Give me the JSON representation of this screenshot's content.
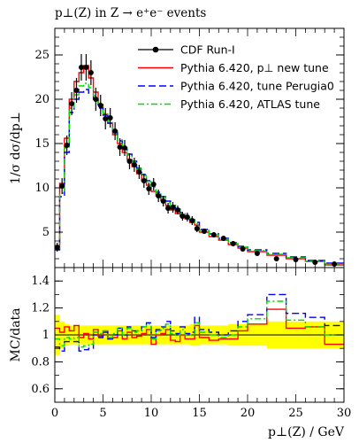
{
  "chart_data": [
    {
      "type": "line",
      "title": "p⊥(Z) in Z → e⁺e⁻ events",
      "ylabel": "1/σ dσ/dp⊥",
      "ylim": [
        1,
        28
      ],
      "yticks": [
        5,
        10,
        15,
        20,
        25
      ],
      "grid": false,
      "legend_position": "top-right",
      "x_bins": [
        0,
        0.5,
        1,
        1.5,
        2,
        2.5,
        3,
        3.5,
        4,
        4.5,
        5,
        5.5,
        6,
        6.5,
        7,
        7.5,
        8,
        8.5,
        9,
        9.5,
        10,
        10.5,
        11,
        11.5,
        12,
        12.5,
        13,
        13.5,
        14,
        14.5,
        15,
        16,
        17,
        18,
        19,
        20,
        22,
        24,
        26,
        28,
        30
      ],
      "data": {
        "name": "CDF Run-I",
        "x": [
          0.25,
          0.75,
          1.25,
          1.75,
          2.25,
          2.75,
          3.25,
          3.75,
          4.25,
          4.75,
          5.25,
          5.75,
          6.25,
          6.75,
          7.25,
          7.75,
          8.25,
          8.75,
          9.25,
          9.75,
          10.25,
          10.75,
          11.25,
          11.75,
          12.25,
          12.75,
          13.25,
          13.75,
          14.25,
          14.75,
          15.5,
          16.5,
          17.5,
          18.5,
          19.5,
          21,
          23,
          25,
          27,
          29
        ],
        "y": [
          3.3,
          10.2,
          14.8,
          19.5,
          21.0,
          23.6,
          23.6,
          23.0,
          20.0,
          19.3,
          17.8,
          17.9,
          16.4,
          14.6,
          14.5,
          13.0,
          12.6,
          11.8,
          10.8,
          9.9,
          10.4,
          9.1,
          8.5,
          7.7,
          7.8,
          7.5,
          6.8,
          6.7,
          6.3,
          5.4,
          5.1,
          4.7,
          4.3,
          3.7,
          3.1,
          2.6,
          2.0,
          1.9,
          1.6,
          1.4
        ],
        "yerr": [
          0.5,
          0.9,
          1.1,
          1.3,
          1.4,
          1.5,
          1.5,
          1.4,
          1.3,
          1.2,
          1.2,
          1.1,
          1.0,
          1.0,
          0.9,
          0.9,
          0.8,
          0.8,
          0.8,
          0.7,
          0.7,
          0.7,
          0.6,
          0.6,
          0.6,
          0.5,
          0.5,
          0.5,
          0.5,
          0.4,
          0.3,
          0.3,
          0.3,
          0.3,
          0.2,
          0.2,
          0.2,
          0.15,
          0.15,
          0.12
        ]
      },
      "series": [
        {
          "name": "Pythia 6.420, p⊥ new tune",
          "color": "#ff0000",
          "style": "solid",
          "values": [
            3.4,
            10.5,
            15.6,
            20.0,
            22.0,
            23.0,
            23.8,
            22.4,
            20.8,
            19.4,
            18.3,
            17.3,
            16.0,
            15.0,
            14.0,
            13.2,
            12.4,
            11.6,
            10.8,
            10.3,
            9.6,
            9.1,
            8.6,
            8.0,
            7.5,
            7.1,
            6.8,
            6.5,
            6.1,
            5.8,
            5.0,
            4.5,
            4.1,
            3.6,
            3.2,
            2.8,
            2.4,
            2.0,
            1.7,
            1.3
          ]
        },
        {
          "name": "Pythia 6.420, tune Perugia0",
          "color": "#0000ff",
          "style": "dashed",
          "values": [
            3.0,
            9.0,
            14.0,
            18.5,
            20.0,
            20.8,
            21.1,
            20.7,
            20.0,
            19.0,
            18.2,
            17.3,
            16.4,
            15.3,
            14.5,
            13.8,
            13.0,
            12.2,
            11.5,
            10.8,
            10.2,
            9.5,
            9.0,
            8.5,
            8.0,
            7.6,
            7.2,
            6.8,
            6.4,
            6.1,
            5.3,
            4.8,
            4.3,
            3.8,
            3.4,
            3.0,
            2.6,
            2.2,
            1.8,
            1.5
          ]
        },
        {
          "name": "Pythia 6.420, ATLAS tune",
          "color": "#00dd00",
          "style": "dashdot",
          "values": [
            3.2,
            9.4,
            14.5,
            19.0,
            20.5,
            21.5,
            21.8,
            21.3,
            20.4,
            19.5,
            18.4,
            17.5,
            16.5,
            15.4,
            14.5,
            13.7,
            12.9,
            12.1,
            11.4,
            10.7,
            10.1,
            9.4,
            8.9,
            8.3,
            7.9,
            7.5,
            7.1,
            6.7,
            6.3,
            5.9,
            5.2,
            4.7,
            4.2,
            3.7,
            3.3,
            2.9,
            2.5,
            2.1,
            1.7,
            1.4
          ]
        }
      ]
    },
    {
      "type": "line",
      "ylabel": "MC/data",
      "xlabel": "p⊥(Z) / GeV",
      "ylim": [
        0.5,
        1.5
      ],
      "yticks": [
        0.6,
        0.8,
        1,
        1.2,
        1.4
      ],
      "xlim": [
        0,
        30
      ],
      "xticks": [
        0,
        5,
        10,
        15,
        20,
        25,
        30
      ],
      "reference_line": 1,
      "band_color": "#ffff00",
      "band_halfwidth": [
        0.15,
        0.1,
        0.08,
        0.07,
        0.07,
        0.07,
        0.07,
        0.07,
        0.07,
        0.07,
        0.07,
        0.07,
        0.07,
        0.07,
        0.07,
        0.07,
        0.07,
        0.07,
        0.07,
        0.07,
        0.07,
        0.07,
        0.07,
        0.07,
        0.07,
        0.07,
        0.07,
        0.07,
        0.08,
        0.08,
        0.07,
        0.07,
        0.07,
        0.08,
        0.08,
        0.08,
        0.1,
        0.1,
        0.1,
        0.1
      ],
      "series": [
        {
          "name": "Pythia 6.420, p⊥ new tune",
          "color": "#ff0000",
          "style": "solid",
          "values": [
            1.05,
            1.02,
            1.06,
            1.03,
            1.07,
            0.98,
            1.01,
            0.97,
            1.04,
            0.99,
            1.03,
            0.97,
            0.98,
            1.03,
            0.97,
            1.02,
            0.98,
            0.99,
            1.01,
            1.04,
            0.93,
            1.0,
            1.01,
            1.04,
            0.96,
            0.95,
            1.0,
            0.97,
            0.97,
            1.07,
            0.98,
            0.96,
            0.97,
            0.97,
            1.03,
            1.08,
            1.19,
            1.05,
            1.06,
            0.93
          ]
        },
        {
          "name": "Pythia 6.420, tune Perugia0",
          "color": "#0000ff",
          "style": "dashed",
          "values": [
            0.91,
            0.88,
            0.95,
            0.95,
            0.95,
            0.88,
            0.89,
            0.9,
            1.0,
            0.98,
            1.02,
            0.97,
            1.0,
            1.05,
            1.0,
            1.06,
            1.03,
            1.03,
            1.06,
            1.09,
            0.98,
            1.04,
            1.06,
            1.1,
            1.03,
            1.01,
            1.06,
            1.01,
            1.02,
            1.13,
            1.04,
            1.02,
            1.0,
            1.03,
            1.1,
            1.15,
            1.3,
            1.16,
            1.13,
            1.07
          ]
        },
        {
          "name": "Pythia 6.420, ATLAS tune",
          "color": "#00dd00",
          "style": "dashdot",
          "values": [
            0.97,
            0.92,
            0.98,
            0.97,
            0.98,
            0.91,
            0.92,
            0.93,
            1.02,
            1.01,
            1.03,
            0.98,
            1.01,
            1.05,
            1.0,
            1.05,
            1.02,
            1.03,
            1.06,
            1.08,
            0.97,
            1.03,
            1.05,
            1.08,
            1.01,
            1.0,
            1.04,
            1.0,
            1.0,
            1.09,
            1.02,
            1.0,
            0.98,
            1.0,
            1.06,
            1.12,
            1.25,
            1.11,
            1.06,
            1.0
          ]
        }
      ]
    }
  ]
}
